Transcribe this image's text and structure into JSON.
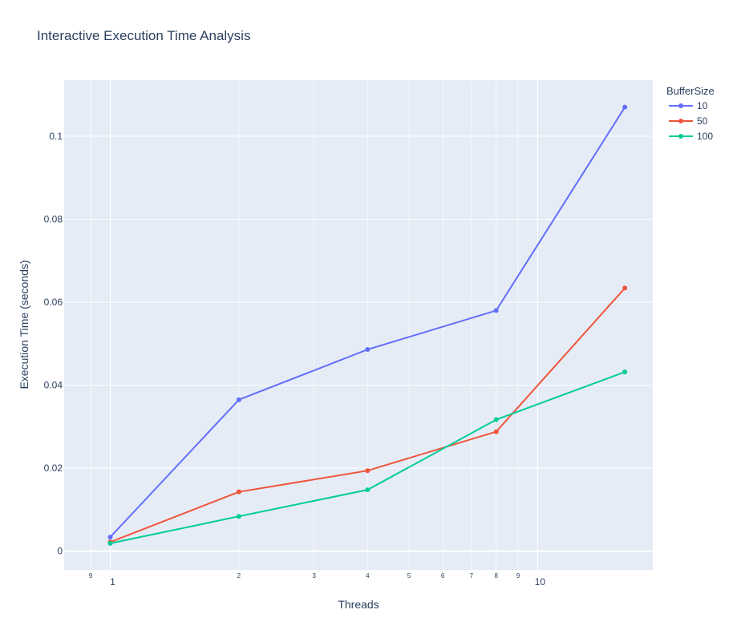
{
  "chart_data": {
    "type": "line",
    "title": "Interactive Execution Time Analysis",
    "xlabel": "Threads",
    "ylabel": "Execution Time (seconds)",
    "x_scale": "log",
    "x": [
      1,
      2,
      4,
      8,
      16
    ],
    "xlim": [
      0.78,
      18.6
    ],
    "ylim": [
      -0.0045,
      0.1135
    ],
    "x_major_ticks": [
      {
        "value": 1,
        "label": "1"
      },
      {
        "value": 10,
        "label": "10"
      }
    ],
    "x_minor_ticks": [
      {
        "value": 0.9,
        "label": "9"
      },
      {
        "value": 2,
        "label": "2"
      },
      {
        "value": 3,
        "label": "3"
      },
      {
        "value": 4,
        "label": "4"
      },
      {
        "value": 5,
        "label": "5"
      },
      {
        "value": 6,
        "label": "6"
      },
      {
        "value": 7,
        "label": "7"
      },
      {
        "value": 8,
        "label": "8"
      },
      {
        "value": 9,
        "label": "9"
      }
    ],
    "y_ticks": [
      {
        "value": 0,
        "label": "0"
      },
      {
        "value": 0.02,
        "label": "0.02"
      },
      {
        "value": 0.04,
        "label": "0.04"
      },
      {
        "value": 0.06,
        "label": "0.06"
      },
      {
        "value": 0.08,
        "label": "0.08"
      },
      {
        "value": 0.1,
        "label": "0.1"
      }
    ],
    "grid": true,
    "legend_title": "BufferSize",
    "legend_position": "top-right",
    "series": [
      {
        "name": "10",
        "color": "#636efa",
        "values": [
          0.0034,
          0.0365,
          0.0486,
          0.058,
          0.107
        ]
      },
      {
        "name": "50",
        "color": "#ef553b",
        "values": [
          0.0022,
          0.0143,
          0.0194,
          0.0288,
          0.0634
        ]
      },
      {
        "name": "100",
        "color": "#00cc96",
        "values": [
          0.0019,
          0.0084,
          0.0148,
          0.0317,
          0.0432
        ]
      }
    ]
  }
}
